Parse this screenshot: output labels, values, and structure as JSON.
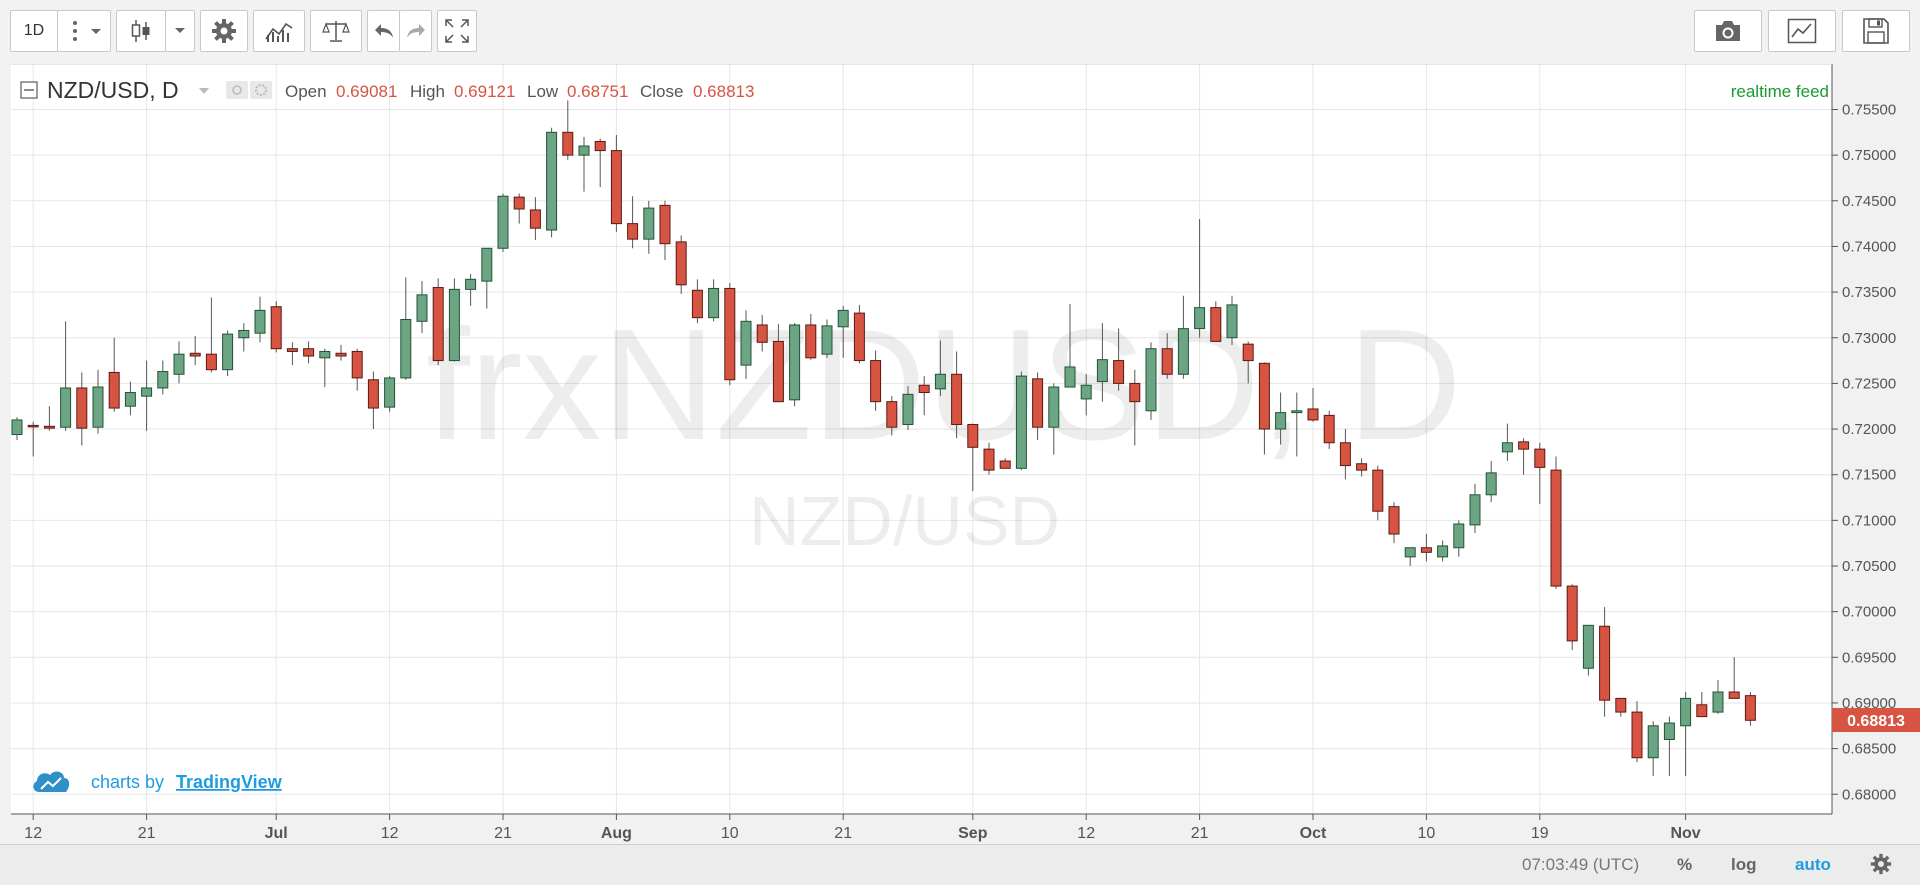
{
  "toolbar": {
    "interval": "1D"
  },
  "legend": {
    "symbol": "NZD/USD, D",
    "open_label": "Open",
    "open_value": "0.69081",
    "high_label": "High",
    "high_value": "0.69121",
    "low_label": "Low",
    "low_value": "0.68751",
    "close_label": "Close",
    "close_value": "0.68813",
    "feed": "realtime feed"
  },
  "watermark": {
    "big": "frxNZDUSD, D",
    "small": "NZD/USD"
  },
  "branding": {
    "prefix": "charts by",
    "link": "TradingView"
  },
  "status": {
    "time": "07:03:49 (UTC)",
    "percent": "%",
    "log": "log",
    "auto": "auto"
  },
  "colors": {
    "up": "#6ba583",
    "down": "#d75442",
    "up_border": "#225437",
    "down_border": "#5b1a13",
    "grid": "#e6e6e6",
    "price_badge": "#d75442",
    "feed": "#1a9a2e",
    "link": "#1e9ce0"
  },
  "chart_data": {
    "type": "candlestick",
    "symbol": "NZD/USD",
    "interval": "D",
    "ylim": [
      0.677,
      0.759
    ],
    "y_ticks": [
      "0.75500",
      "0.75000",
      "0.74500",
      "0.74000",
      "0.73500",
      "0.73000",
      "0.72500",
      "0.72000",
      "0.71500",
      "0.71000",
      "0.70500",
      "0.70000",
      "0.69500",
      "0.69000",
      "0.68500",
      "0.68000"
    ],
    "x_ticks": [
      {
        "label": "12",
        "index": 1
      },
      {
        "label": "21",
        "index": 8
      },
      {
        "label": "Jul",
        "index": 16
      },
      {
        "label": "12",
        "index": 23
      },
      {
        "label": "21",
        "index": 30
      },
      {
        "label": "Aug",
        "index": 37
      },
      {
        "label": "10",
        "index": 44
      },
      {
        "label": "21",
        "index": 51
      },
      {
        "label": "Sep",
        "index": 59
      },
      {
        "label": "12",
        "index": 66
      },
      {
        "label": "21",
        "index": 73
      },
      {
        "label": "Oct",
        "index": 80
      },
      {
        "label": "10",
        "index": 87
      },
      {
        "label": "19",
        "index": 94
      },
      {
        "label": "Nov",
        "index": 103
      }
    ],
    "last_price": "0.68813",
    "candles": [
      [
        0.7194,
        0.7213,
        0.7188,
        0.721
      ],
      [
        0.7204,
        0.7208,
        0.717,
        0.7203
      ],
      [
        0.7203,
        0.7225,
        0.7198,
        0.7201
      ],
      [
        0.7202,
        0.7318,
        0.7198,
        0.7245
      ],
      [
        0.7245,
        0.7262,
        0.7182,
        0.7201
      ],
      [
        0.7202,
        0.7265,
        0.7195,
        0.7246
      ],
      [
        0.7262,
        0.73,
        0.7219,
        0.7223
      ],
      [
        0.7225,
        0.7252,
        0.7215,
        0.724
      ],
      [
        0.7236,
        0.7275,
        0.7198,
        0.7245
      ],
      [
        0.7245,
        0.7275,
        0.7238,
        0.7263
      ],
      [
        0.726,
        0.7296,
        0.725,
        0.7282
      ],
      [
        0.7283,
        0.7302,
        0.727,
        0.728
      ],
      [
        0.7282,
        0.7344,
        0.7262,
        0.7265
      ],
      [
        0.7265,
        0.7308,
        0.7258,
        0.7304
      ],
      [
        0.73,
        0.7316,
        0.7285,
        0.7308
      ],
      [
        0.7305,
        0.7345,
        0.7295,
        0.733
      ],
      [
        0.7334,
        0.734,
        0.7284,
        0.7288
      ],
      [
        0.7288,
        0.7295,
        0.727,
        0.7285
      ],
      [
        0.7288,
        0.7296,
        0.7272,
        0.728
      ],
      [
        0.7278,
        0.7288,
        0.7246,
        0.7285
      ],
      [
        0.7283,
        0.7292,
        0.7275,
        0.728
      ],
      [
        0.7285,
        0.7288,
        0.7242,
        0.7256
      ],
      [
        0.7254,
        0.7263,
        0.72,
        0.7223
      ],
      [
        0.7224,
        0.7258,
        0.7219,
        0.7256
      ],
      [
        0.7256,
        0.7366,
        0.7254,
        0.732
      ],
      [
        0.7318,
        0.7362,
        0.7305,
        0.7347
      ],
      [
        0.7355,
        0.7365,
        0.727,
        0.7275
      ],
      [
        0.7275,
        0.7365,
        0.7274,
        0.7353
      ],
      [
        0.7353,
        0.737,
        0.7335,
        0.7364
      ],
      [
        0.7362,
        0.7397,
        0.7332,
        0.7398
      ],
      [
        0.7398,
        0.7458,
        0.7394,
        0.7455
      ],
      [
        0.7454,
        0.7458,
        0.7425,
        0.7441
      ],
      [
        0.744,
        0.7454,
        0.7407,
        0.742
      ],
      [
        0.7418,
        0.753,
        0.741,
        0.7525
      ],
      [
        0.7525,
        0.756,
        0.7495,
        0.75
      ],
      [
        0.75,
        0.752,
        0.746,
        0.751
      ],
      [
        0.7515,
        0.7518,
        0.7465,
        0.7505
      ],
      [
        0.7505,
        0.7522,
        0.7416,
        0.7425
      ],
      [
        0.7425,
        0.7455,
        0.7398,
        0.7408
      ],
      [
        0.7408,
        0.745,
        0.7392,
        0.7442
      ],
      [
        0.7445,
        0.745,
        0.7385,
        0.7403
      ],
      [
        0.7405,
        0.7412,
        0.7348,
        0.7358
      ],
      [
        0.7352,
        0.7364,
        0.7316,
        0.7322
      ],
      [
        0.7322,
        0.7364,
        0.7318,
        0.7354
      ],
      [
        0.7354,
        0.736,
        0.7248,
        0.7254
      ],
      [
        0.727,
        0.733,
        0.7255,
        0.7318
      ],
      [
        0.7314,
        0.7325,
        0.7285,
        0.7295
      ],
      [
        0.7296,
        0.7315,
        0.723,
        0.723
      ],
      [
        0.7232,
        0.7316,
        0.7225,
        0.7314
      ],
      [
        0.7314,
        0.7326,
        0.7276,
        0.7278
      ],
      [
        0.7282,
        0.732,
        0.7278,
        0.7313
      ],
      [
        0.7312,
        0.7335,
        0.7278,
        0.733
      ],
      [
        0.7327,
        0.7336,
        0.7272,
        0.7275
      ],
      [
        0.7275,
        0.7286,
        0.722,
        0.723
      ],
      [
        0.723,
        0.7236,
        0.7193,
        0.7202
      ],
      [
        0.7205,
        0.7247,
        0.7199,
        0.7238
      ],
      [
        0.7248,
        0.7258,
        0.7215,
        0.724
      ],
      [
        0.7244,
        0.7297,
        0.7236,
        0.726
      ],
      [
        0.726,
        0.7285,
        0.719,
        0.7205
      ],
      [
        0.7205,
        0.7206,
        0.7132,
        0.718
      ],
      [
        0.7178,
        0.7185,
        0.715,
        0.7155
      ],
      [
        0.7165,
        0.7168,
        0.7158,
        0.7157
      ],
      [
        0.7157,
        0.7263,
        0.7155,
        0.7258
      ],
      [
        0.7255,
        0.7262,
        0.7188,
        0.7202
      ],
      [
        0.7202,
        0.725,
        0.7172,
        0.7246
      ],
      [
        0.7246,
        0.7337,
        0.7246,
        0.7268
      ],
      [
        0.7233,
        0.726,
        0.7215,
        0.7248
      ],
      [
        0.7252,
        0.7316,
        0.723,
        0.7276
      ],
      [
        0.7275,
        0.731,
        0.7242,
        0.725
      ],
      [
        0.725,
        0.7265,
        0.7182,
        0.723
      ],
      [
        0.722,
        0.7295,
        0.721,
        0.7288
      ],
      [
        0.7288,
        0.7305,
        0.7255,
        0.726
      ],
      [
        0.726,
        0.7346,
        0.7255,
        0.731
      ],
      [
        0.731,
        0.743,
        0.73,
        0.7333
      ],
      [
        0.7333,
        0.734,
        0.7296,
        0.7296
      ],
      [
        0.73,
        0.7346,
        0.7292,
        0.7336
      ],
      [
        0.7293,
        0.7296,
        0.725,
        0.7275
      ],
      [
        0.7272,
        0.7273,
        0.7172,
        0.72
      ],
      [
        0.72,
        0.724,
        0.7183,
        0.7218
      ],
      [
        0.7218,
        0.724,
        0.717,
        0.722
      ],
      [
        0.7222,
        0.7245,
        0.7208,
        0.721
      ],
      [
        0.7215,
        0.722,
        0.7178,
        0.7185
      ],
      [
        0.7185,
        0.72,
        0.7145,
        0.716
      ],
      [
        0.7162,
        0.7168,
        0.7148,
        0.7155
      ],
      [
        0.7155,
        0.716,
        0.71,
        0.711
      ],
      [
        0.7115,
        0.712,
        0.7075,
        0.7085
      ],
      [
        0.706,
        0.707,
        0.705,
        0.707
      ],
      [
        0.707,
        0.7085,
        0.7055,
        0.7065
      ],
      [
        0.706,
        0.7078,
        0.7055,
        0.7072
      ],
      [
        0.707,
        0.71,
        0.706,
        0.7096
      ],
      [
        0.7095,
        0.714,
        0.7086,
        0.7128
      ],
      [
        0.7128,
        0.7165,
        0.712,
        0.7152
      ],
      [
        0.7175,
        0.7206,
        0.7165,
        0.7185
      ],
      [
        0.7186,
        0.719,
        0.715,
        0.7178
      ],
      [
        0.7178,
        0.7185,
        0.7118,
        0.7158
      ],
      [
        0.7155,
        0.717,
        0.7025,
        0.7028
      ],
      [
        0.7028,
        0.703,
        0.6958,
        0.6968
      ],
      [
        0.6938,
        0.6985,
        0.693,
        0.6985
      ],
      [
        0.6984,
        0.7005,
        0.6885,
        0.6903
      ],
      [
        0.6905,
        0.6905,
        0.6885,
        0.689
      ],
      [
        0.689,
        0.6902,
        0.6835,
        0.684
      ],
      [
        0.684,
        0.688,
        0.682,
        0.6875
      ],
      [
        0.686,
        0.6885,
        0.682,
        0.6878
      ],
      [
        0.6875,
        0.6912,
        0.682,
        0.6905
      ],
      [
        0.6898,
        0.6912,
        0.6885,
        0.6885
      ],
      [
        0.689,
        0.6925,
        0.6888,
        0.6912
      ],
      [
        0.6912,
        0.695,
        0.6905,
        0.6905
      ],
      [
        0.6908,
        0.6912,
        0.6875,
        0.6881
      ]
    ]
  }
}
